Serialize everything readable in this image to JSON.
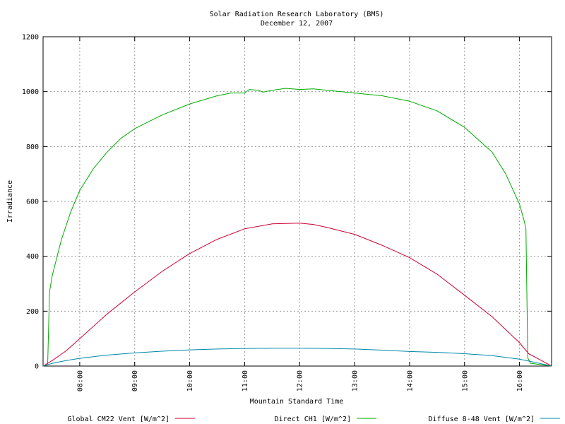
{
  "chart_data": {
    "type": "line",
    "title": "Solar Radiation Research Laboratory (BMS)",
    "subtitle": "December 12, 2007",
    "xlabel": "Mountain Standard Time",
    "ylabel": "Irradiance",
    "xlim": [
      "07:20",
      "16:35"
    ],
    "ylim": [
      0,
      1200
    ],
    "y_ticks": [
      0,
      200,
      400,
      600,
      800,
      1000,
      1200
    ],
    "x_ticks": [
      "08:00",
      "09:00",
      "10:00",
      "11:00",
      "12:00",
      "13:00",
      "14:00",
      "15:00",
      "16:00"
    ],
    "grid": true,
    "legend_position": "bottom",
    "series": [
      {
        "name": "Global CM22 Vent [W/m^2]",
        "color": "#cc0033",
        "x": [
          "07:20",
          "07:30",
          "07:45",
          "08:00",
          "08:30",
          "09:00",
          "09:30",
          "10:00",
          "10:30",
          "11:00",
          "11:30",
          "12:00",
          "12:15",
          "12:30",
          "13:00",
          "13:30",
          "14:00",
          "14:30",
          "15:00",
          "15:30",
          "16:00",
          "16:10",
          "16:35"
        ],
        "y": [
          0,
          20,
          55,
          100,
          190,
          270,
          345,
          410,
          462,
          500,
          518,
          521,
          516,
          505,
          480,
          440,
          395,
          335,
          258,
          180,
          85,
          45,
          0
        ]
      },
      {
        "name": "Direct CH1 [W/m^2]",
        "color": "#00aa00",
        "x": [
          "07:20",
          "07:25",
          "07:27",
          "07:30",
          "07:40",
          "07:50",
          "08:00",
          "08:15",
          "08:30",
          "08:45",
          "09:00",
          "09:30",
          "10:00",
          "10:30",
          "10:45",
          "11:00",
          "11:05",
          "11:15",
          "11:20",
          "11:30",
          "11:45",
          "12:00",
          "12:15",
          "12:30",
          "13:00",
          "13:30",
          "14:00",
          "14:30",
          "15:00",
          "15:30",
          "15:45",
          "16:00",
          "16:05",
          "16:07",
          "16:09",
          "16:12",
          "16:35"
        ],
        "y": [
          0,
          5,
          270,
          330,
          460,
          560,
          640,
          720,
          780,
          830,
          865,
          915,
          955,
          985,
          995,
          995,
          1008,
          1005,
          998,
          1005,
          1012,
          1008,
          1010,
          1005,
          995,
          985,
          965,
          930,
          870,
          780,
          700,
          590,
          530,
          500,
          30,
          10,
          0
        ]
      },
      {
        "name": "Diffuse 8-48 Vent [W/m^2]",
        "color": "#0088aa",
        "x": [
          "07:20",
          "07:30",
          "07:45",
          "08:00",
          "08:30",
          "09:00",
          "09:30",
          "10:00",
          "10:30",
          "11:00",
          "11:30",
          "12:00",
          "12:30",
          "13:00",
          "13:30",
          "14:00",
          "14:30",
          "15:00",
          "15:30",
          "16:00",
          "16:15",
          "16:35"
        ],
        "y": [
          0,
          10,
          20,
          28,
          40,
          48,
          54,
          59,
          62,
          64,
          65,
          65,
          64,
          62,
          58,
          53,
          50,
          45,
          38,
          25,
          15,
          0
        ]
      }
    ]
  }
}
